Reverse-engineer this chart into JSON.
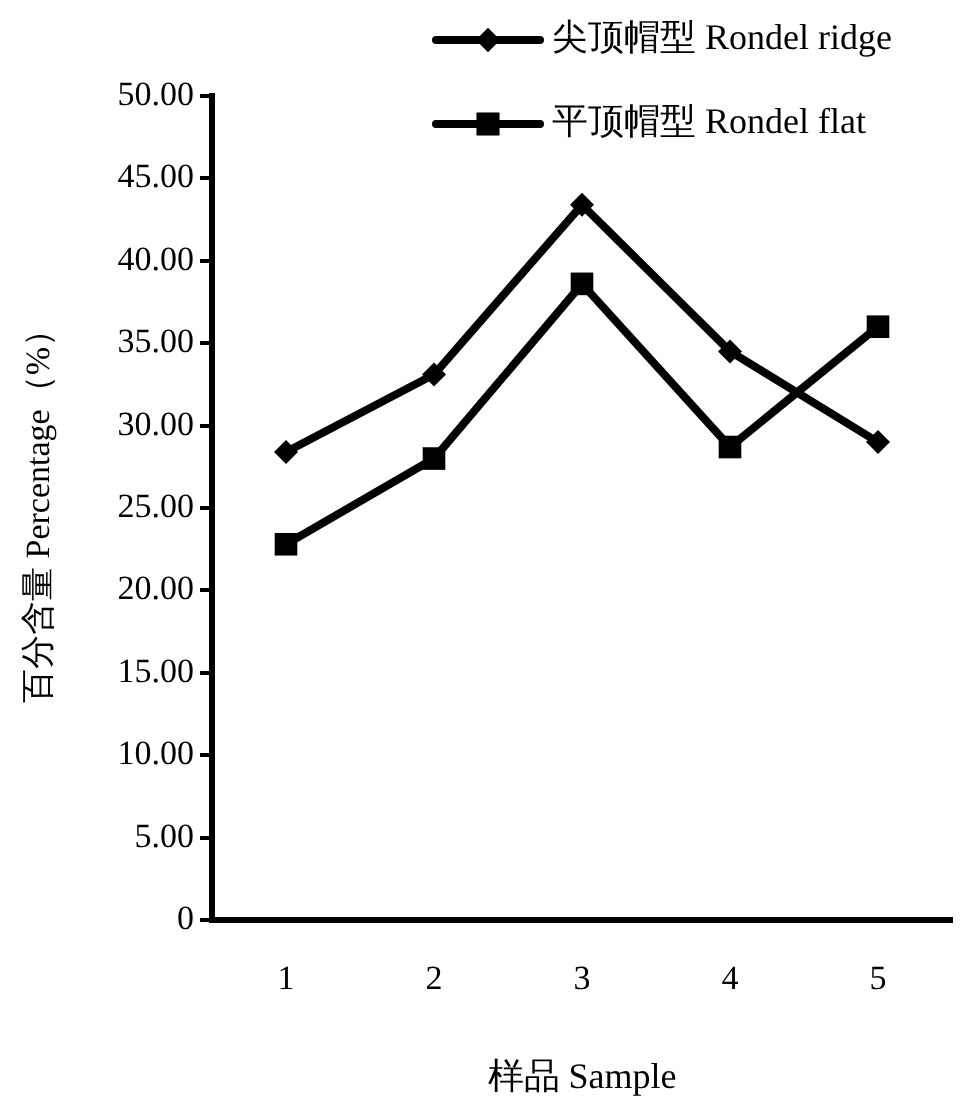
{
  "chart_data": {
    "type": "line",
    "xlabel": "样品 Sample",
    "ylabel": "百分含量 Percentage（%）",
    "categories": [
      "1",
      "2",
      "3",
      "4",
      "5"
    ],
    "series": [
      {
        "name": "尖顶帽型 Rondel ridge",
        "color": "#000000",
        "marker": "diamond",
        "values": [
          28.4,
          33.1,
          43.4,
          34.5,
          29.0
        ]
      },
      {
        "name": "平顶帽型 Rondel flat",
        "color": "#000000",
        "marker": "square",
        "values": [
          22.8,
          28.0,
          38.6,
          28.7,
          36.0
        ]
      }
    ],
    "ylim": [
      0,
      50
    ],
    "yticks": [
      {
        "value": 0,
        "label": "0"
      },
      {
        "value": 5,
        "label": "5.00"
      },
      {
        "value": 10,
        "label": "10.00"
      },
      {
        "value": 15,
        "label": "15.00"
      },
      {
        "value": 20,
        "label": "20.00"
      },
      {
        "value": 25,
        "label": "25.00"
      },
      {
        "value": 30,
        "label": "30.00"
      },
      {
        "value": 35,
        "label": "35.00"
      },
      {
        "value": 40,
        "label": "40.00"
      },
      {
        "value": 45,
        "label": "45.00"
      },
      {
        "value": 50,
        "label": "50.00"
      }
    ],
    "grid": false,
    "legend": "top right",
    "line_style": "solid"
  }
}
